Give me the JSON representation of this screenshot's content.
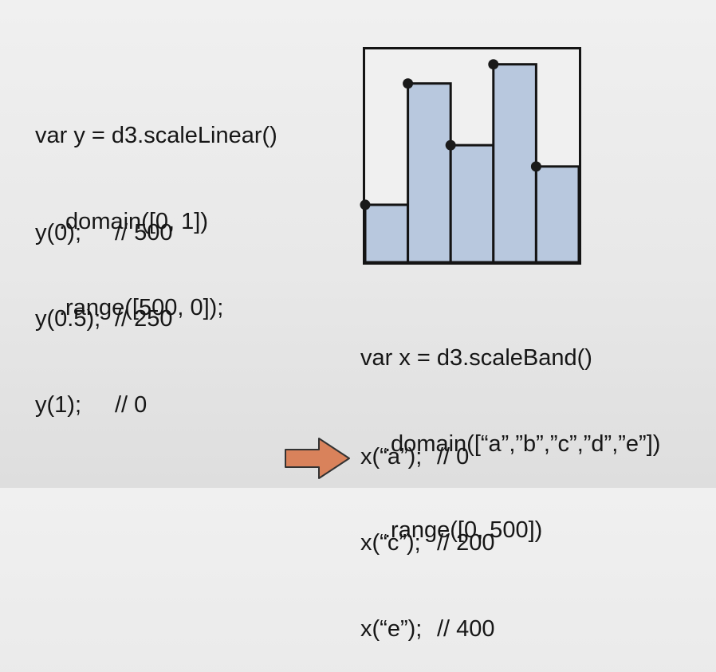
{
  "y_scale": {
    "code": [
      "var y = d3.scaleLinear()",
      ".domain([0, 1])",
      ".range([500, 0]);"
    ],
    "results": [
      {
        "call": "y(0);",
        "comment": "// 500"
      },
      {
        "call": "y(0.5);",
        "comment": "// 250"
      },
      {
        "call": "y(1);",
        "comment": "// 0"
      }
    ]
  },
  "x_scale": {
    "code": [
      "var x = d3.scaleBand()",
      ".domain([“a”,”b”,”c”,”d”,”e”])",
      ".range([0, 500])"
    ],
    "results": [
      {
        "call": "x(“a”);",
        "comment": "// 0"
      },
      {
        "call": "x(“c”);",
        "comment": "// 200"
      },
      {
        "call": "x(“e”);",
        "comment": "// 400",
        "highlighted": true
      }
    ]
  },
  "diagram": {
    "bar_values": [
      0.27,
      0.84,
      0.55,
      0.93,
      0.45
    ],
    "colors": {
      "background": "#f0f0f0",
      "bar_fill": "#b8c8de",
      "stroke": "#141414",
      "point": "#1a1a1a"
    }
  },
  "arrow": {
    "icon": "right-arrow-icon",
    "fill": "#d9825b",
    "stroke": "#333333"
  }
}
